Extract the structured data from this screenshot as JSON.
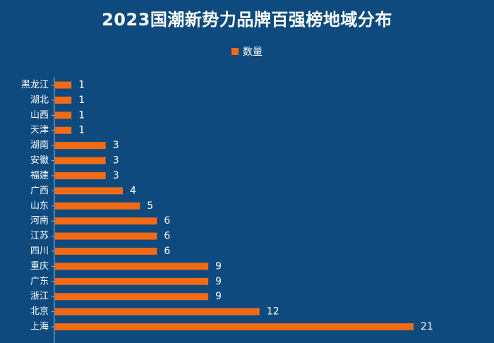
{
  "chart_data": {
    "type": "bar",
    "orientation": "horizontal",
    "title": "2023国潮新势力品牌百强榜地域分布",
    "legend": {
      "label": "数量",
      "position": "top"
    },
    "categories": [
      "黑龙江",
      "湖北",
      "山西",
      "天津",
      "湖南",
      "安徽",
      "福建",
      "广西",
      "山东",
      "河南",
      "江苏",
      "四川",
      "重庆",
      "广东",
      "浙江",
      "北京",
      "上海"
    ],
    "values": [
      1,
      1,
      1,
      1,
      3,
      3,
      3,
      4,
      5,
      6,
      6,
      6,
      9,
      9,
      9,
      12,
      21
    ],
    "data_labels": true,
    "xlim": [
      0,
      21
    ],
    "grid": false,
    "colors": {
      "bar": "#f26a14",
      "background": "#0e4a7e",
      "text": "#ffffff"
    }
  }
}
